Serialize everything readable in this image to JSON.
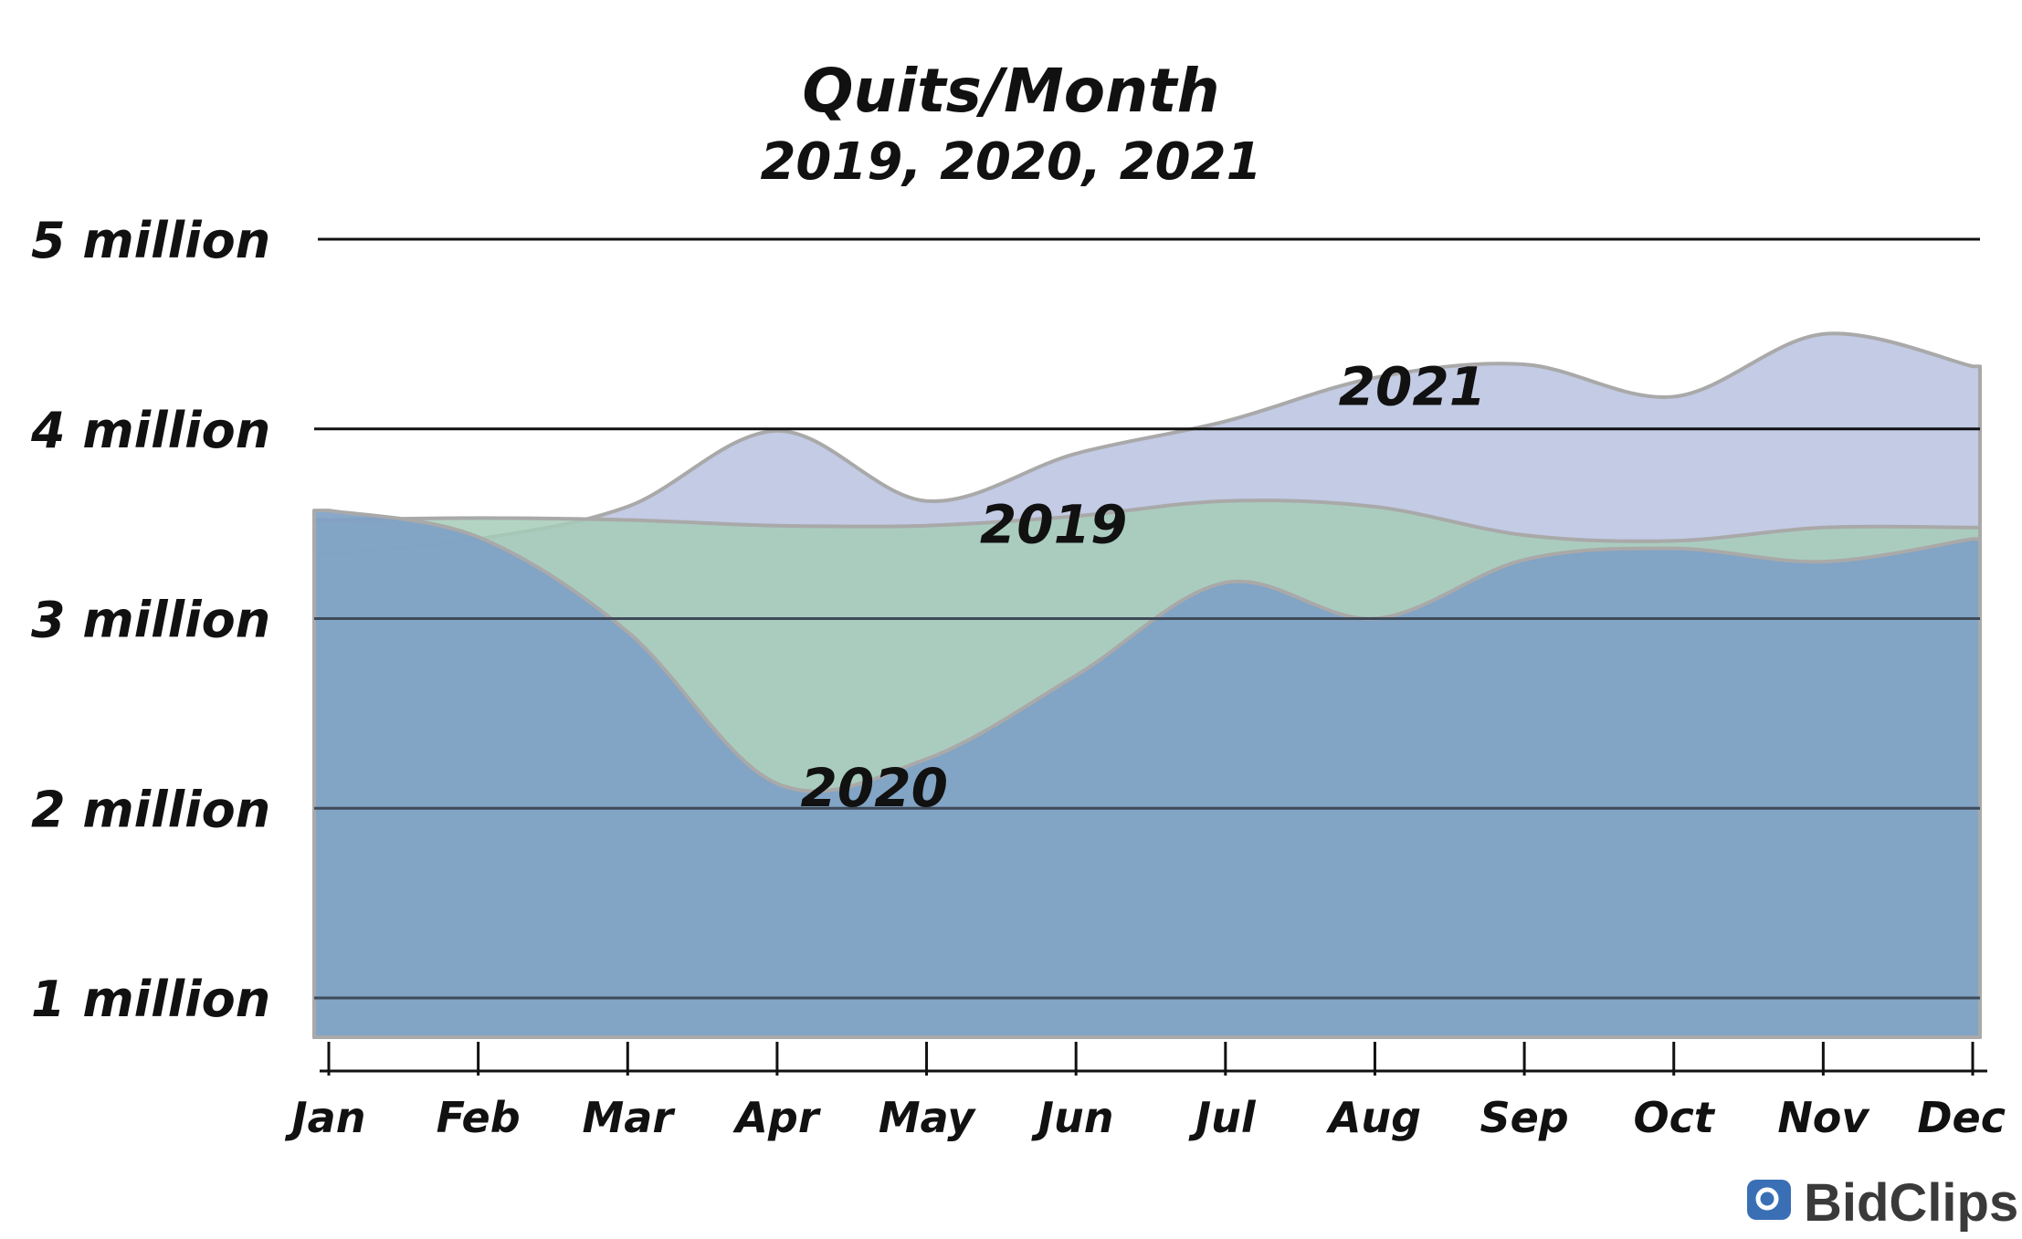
{
  "chart_data": {
    "type": "area",
    "title": "Quits/Month",
    "subtitle": "2019, 2020, 2021",
    "categories": [
      "Jan",
      "Feb",
      "Mar",
      "Apr",
      "May",
      "Jun",
      "Jul",
      "Aug",
      "Sep",
      "Oct",
      "Nov",
      "Dec"
    ],
    "yticks": [
      {
        "value": 1000000,
        "label": "1 million"
      },
      {
        "value": 2000000,
        "label": "2 million"
      },
      {
        "value": 3000000,
        "label": "3 million"
      },
      {
        "value": 4000000,
        "label": "4 million"
      },
      {
        "value": 5000000,
        "label": "5 million"
      }
    ],
    "ylim": [
      800000,
      5000000
    ],
    "grid": true,
    "series": [
      {
        "name": "2021",
        "color": "#b8c2e0",
        "values": [
          3340000,
          3420000,
          3590000,
          3990000,
          3620000,
          3870000,
          4040000,
          4270000,
          4340000,
          4170000,
          4500000,
          4330000
        ]
      },
      {
        "name": "2019",
        "color": "#a6ccb8",
        "values": [
          3520000,
          3530000,
          3520000,
          3490000,
          3490000,
          3540000,
          3620000,
          3590000,
          3440000,
          3410000,
          3480000,
          3480000
        ]
      },
      {
        "name": "2020",
        "color": "#7fa1c6",
        "values": [
          3570000,
          3430000,
          2930000,
          2130000,
          2260000,
          2700000,
          3190000,
          3000000,
          3310000,
          3370000,
          3300000,
          3420000
        ]
      }
    ]
  },
  "branding": {
    "logo_text": "BidClips",
    "logo_color": "#3a6fb5"
  }
}
